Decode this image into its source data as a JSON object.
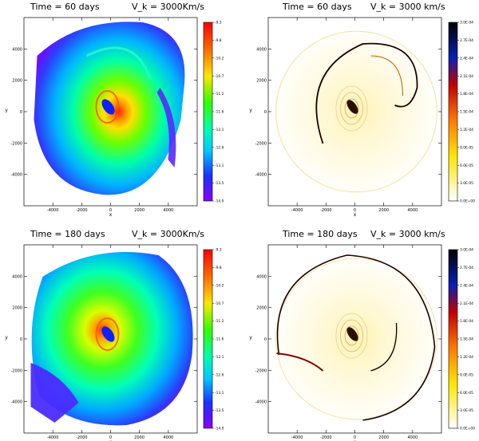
{
  "chart_data": [
    {
      "type": "heatmap",
      "title_time": "Time = 60 days",
      "title_vk": "V_k = 3000Km/s",
      "xlabel": "x",
      "ylabel": "y",
      "xticks": [
        "-4000",
        "-2000",
        "0",
        "2000",
        "4000"
      ],
      "yticks": [
        "4000",
        "2000",
        "0",
        "-2000",
        "-4000"
      ],
      "xlim": [
        -6000,
        6000
      ],
      "ylim": [
        -6000,
        6000
      ],
      "colorbar": {
        "colormap": "rainbow",
        "range": [
          -14.0,
          -9.3
        ],
        "labels": [
          "-9.3",
          "-9.8",
          "-10.2",
          "-10.7",
          "-11.2",
          "-11.6",
          "-12.1",
          "-12.6",
          "-13.1",
          "-13.5",
          "-14.0"
        ]
      }
    },
    {
      "type": "heatmap",
      "title_time": "Time = 60 days",
      "title_vk": "V_k = 3000 km/s",
      "xlabel": "x",
      "ylabel": "y",
      "xticks": [
        "-4000",
        "-2000",
        "0",
        "2000",
        "4000"
      ],
      "yticks": [
        "4000",
        "2000",
        "0",
        "-2000",
        "-4000"
      ],
      "xlim": [
        -6000,
        6000
      ],
      "ylim": [
        -6000,
        6000
      ],
      "colorbar": {
        "colormap": "heat",
        "range": [
          0,
          0.0003
        ],
        "labels": [
          "3.0E-04",
          "2.7E-04",
          "2.4E-04",
          "2.1E-04",
          "1.8E-04",
          "1.5E-04",
          "1.2E-04",
          "9.0E-05",
          "6.0E-05",
          "3.0E-05",
          "0.0E+00"
        ]
      }
    },
    {
      "type": "heatmap",
      "title_time": "Time = 180 days",
      "title_vk": "V_k = 3000Km/s",
      "xlabel": "x",
      "ylabel": "y",
      "xticks": [
        "-4000",
        "-2000",
        "0",
        "2000",
        "4000"
      ],
      "yticks": [
        "4000",
        "2000",
        "0",
        "-2000",
        "-4000"
      ],
      "xlim": [
        -6000,
        6000
      ],
      "ylim": [
        -6000,
        6000
      ],
      "colorbar": {
        "colormap": "rainbow",
        "range": [
          -14.0,
          -9.3
        ],
        "labels": [
          "-9.3",
          "-9.8",
          "-10.2",
          "-10.7",
          "-11.2",
          "-11.6",
          "-12.1",
          "-12.6",
          "-13.1",
          "-13.5",
          "-14.0"
        ]
      }
    },
    {
      "type": "heatmap",
      "title_time": "Time = 180 days",
      "title_vk": "V_k = 3000 km/s",
      "xlabel": "x",
      "ylabel": "y",
      "xticks": [
        "-4000",
        "-2000",
        "0",
        "2000",
        "4000"
      ],
      "yticks": [
        "4000",
        "2000",
        "0",
        "-2000",
        "-4000"
      ],
      "xlim": [
        -6000,
        6000
      ],
      "ylim": [
        -6000,
        6000
      ],
      "colorbar": {
        "colormap": "heat",
        "range": [
          0,
          0.0003
        ],
        "labels": [
          "3.0E-04",
          "2.7E-04",
          "2.4E-04",
          "2.1E-04",
          "1.8E-04",
          "1.5E-04",
          "1.2E-04",
          "9.0E-05",
          "6.0E-05",
          "3.0E-05",
          "0.0E+00"
        ]
      }
    }
  ]
}
